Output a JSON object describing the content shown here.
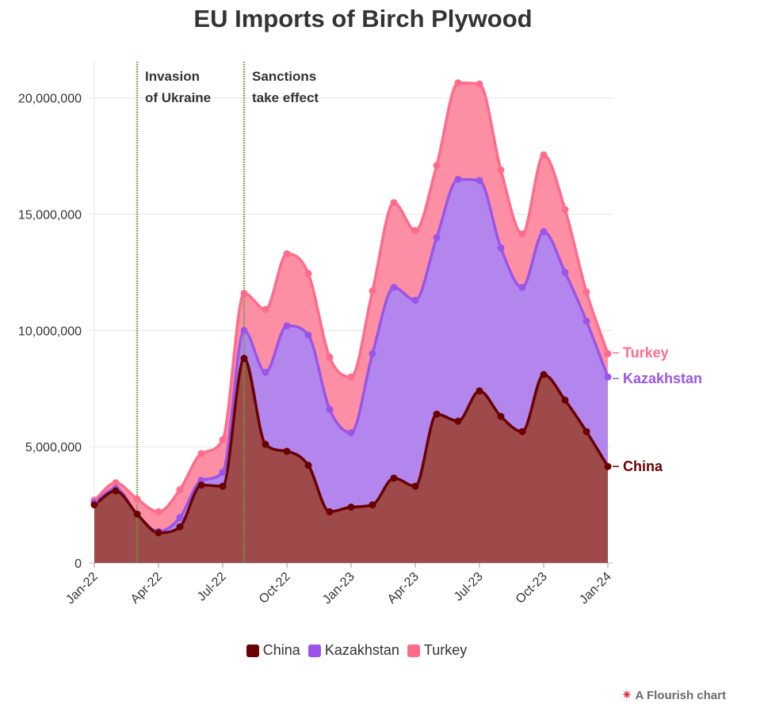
{
  "chart_data": {
    "type": "area",
    "stacked": true,
    "title": "EU Imports of Birch Plywood",
    "xlabel": "",
    "ylabel": "",
    "ylim": [
      0,
      22000000
    ],
    "yticks": [
      0,
      5000000,
      10000000,
      15000000,
      20000000
    ],
    "ytick_labels": [
      "0",
      "5,000,000",
      "10,000,000",
      "15,000,000",
      "20,000,000"
    ],
    "xticks": [
      "Jan-22",
      "Apr-22",
      "Jul-22",
      "Oct-22",
      "Jan-23",
      "Apr-23",
      "Jul-23",
      "Oct-23",
      "Jan-24"
    ],
    "x": [
      "2022-01",
      "2022-02",
      "2022-03",
      "2022-04",
      "2022-05",
      "2022-06",
      "2022-07",
      "2022-08",
      "2022-09",
      "2022-10",
      "2022-11",
      "2022-12",
      "2023-01",
      "2023-02",
      "2023-03",
      "2023-04",
      "2023-05",
      "2023-06",
      "2023-07",
      "2023-08",
      "2023-09",
      "2023-10",
      "2023-11",
      "2023-12",
      "2024-01"
    ],
    "series": [
      {
        "name": "China",
        "color": "#6b0000",
        "fill": "#9e4a4a",
        "values": [
          2500000,
          3100000,
          2100000,
          1300000,
          1550000,
          3350000,
          3300000,
          8800000,
          5100000,
          4800000,
          4200000,
          2200000,
          2400000,
          2500000,
          3650000,
          3300000,
          6400000,
          6100000,
          7400000,
          6300000,
          5650000,
          8100000,
          7000000,
          5650000,
          4150000
        ]
      },
      {
        "name": "Kazakhstan",
        "color": "#9a55e8",
        "fill": "#b386ee",
        "values": [
          100000,
          100000,
          0,
          50000,
          400000,
          200000,
          600000,
          1200000,
          3100000,
          5400000,
          5600000,
          4400000,
          3200000,
          6500000,
          8200000,
          8000000,
          7600000,
          10400000,
          9050000,
          7250000,
          6200000,
          6150000,
          5500000,
          4750000,
          3850000
        ]
      },
      {
        "name": "Turkey",
        "color": "#ff6b8b",
        "fill": "#fd8fa5",
        "values": [
          100000,
          250000,
          650000,
          850000,
          1200000,
          1150000,
          1400000,
          1600000,
          2700000,
          3100000,
          2650000,
          2250000,
          2400000,
          2700000,
          3650000,
          3000000,
          3100000,
          4150000,
          4150000,
          3350000,
          2300000,
          3300000,
          2700000,
          1250000,
          1000000
        ]
      }
    ],
    "annotations": [
      {
        "x": "2022-03",
        "line1": "Invasion",
        "line2": "of Ukraine"
      },
      {
        "x": "2022-08",
        "line1": "Sanctions",
        "line2": "take effect"
      }
    ],
    "grid": true,
    "legend_position": "bottom"
  },
  "credit": {
    "text": "A Flourish chart",
    "icon": "flourish-burst-icon"
  }
}
